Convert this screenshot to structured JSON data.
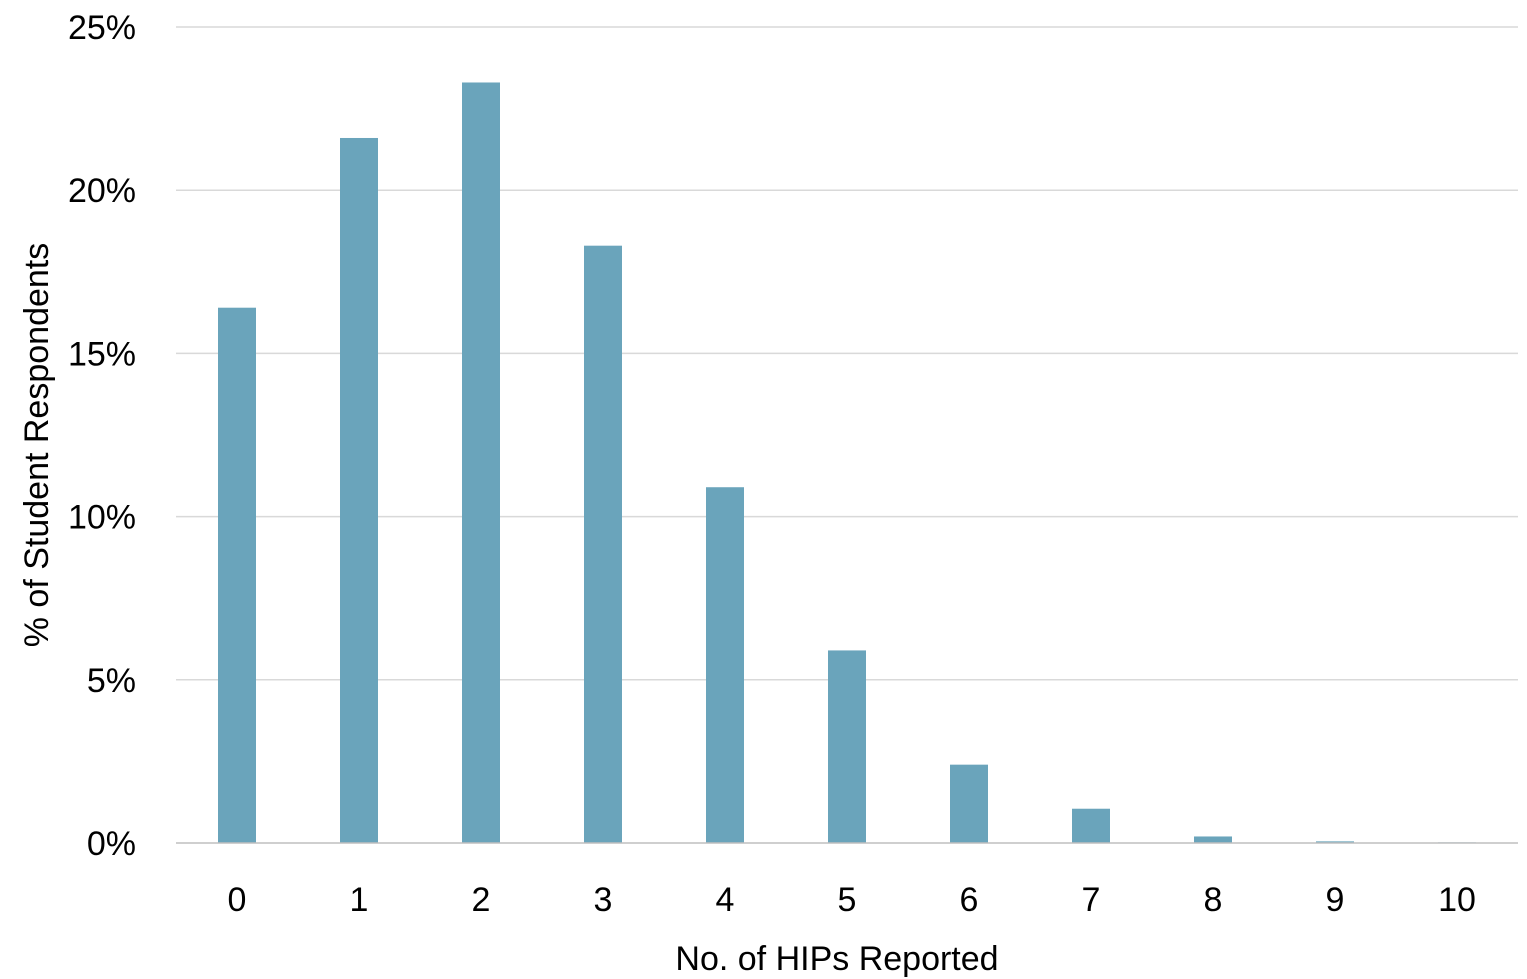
{
  "chart_data": {
    "type": "bar",
    "title": "",
    "xlabel": "No. of HIPs Reported",
    "ylabel": "% of Student Respondents",
    "categories": [
      "0",
      "1",
      "2",
      "3",
      "4",
      "5",
      "6",
      "7",
      "8",
      "9",
      "10"
    ],
    "values": [
      16.4,
      21.6,
      23.3,
      18.3,
      10.9,
      5.9,
      2.4,
      1.05,
      0.2,
      0.05,
      0.02
    ],
    "ylim": [
      0,
      25
    ],
    "yticks": [
      0,
      5,
      10,
      15,
      20,
      25
    ],
    "ytick_labels": [
      "0%",
      "5%",
      "10%",
      "15%",
      "20%",
      "25%"
    ],
    "grid": true,
    "legend": "none",
    "bar_color": "#6aa4bb"
  }
}
